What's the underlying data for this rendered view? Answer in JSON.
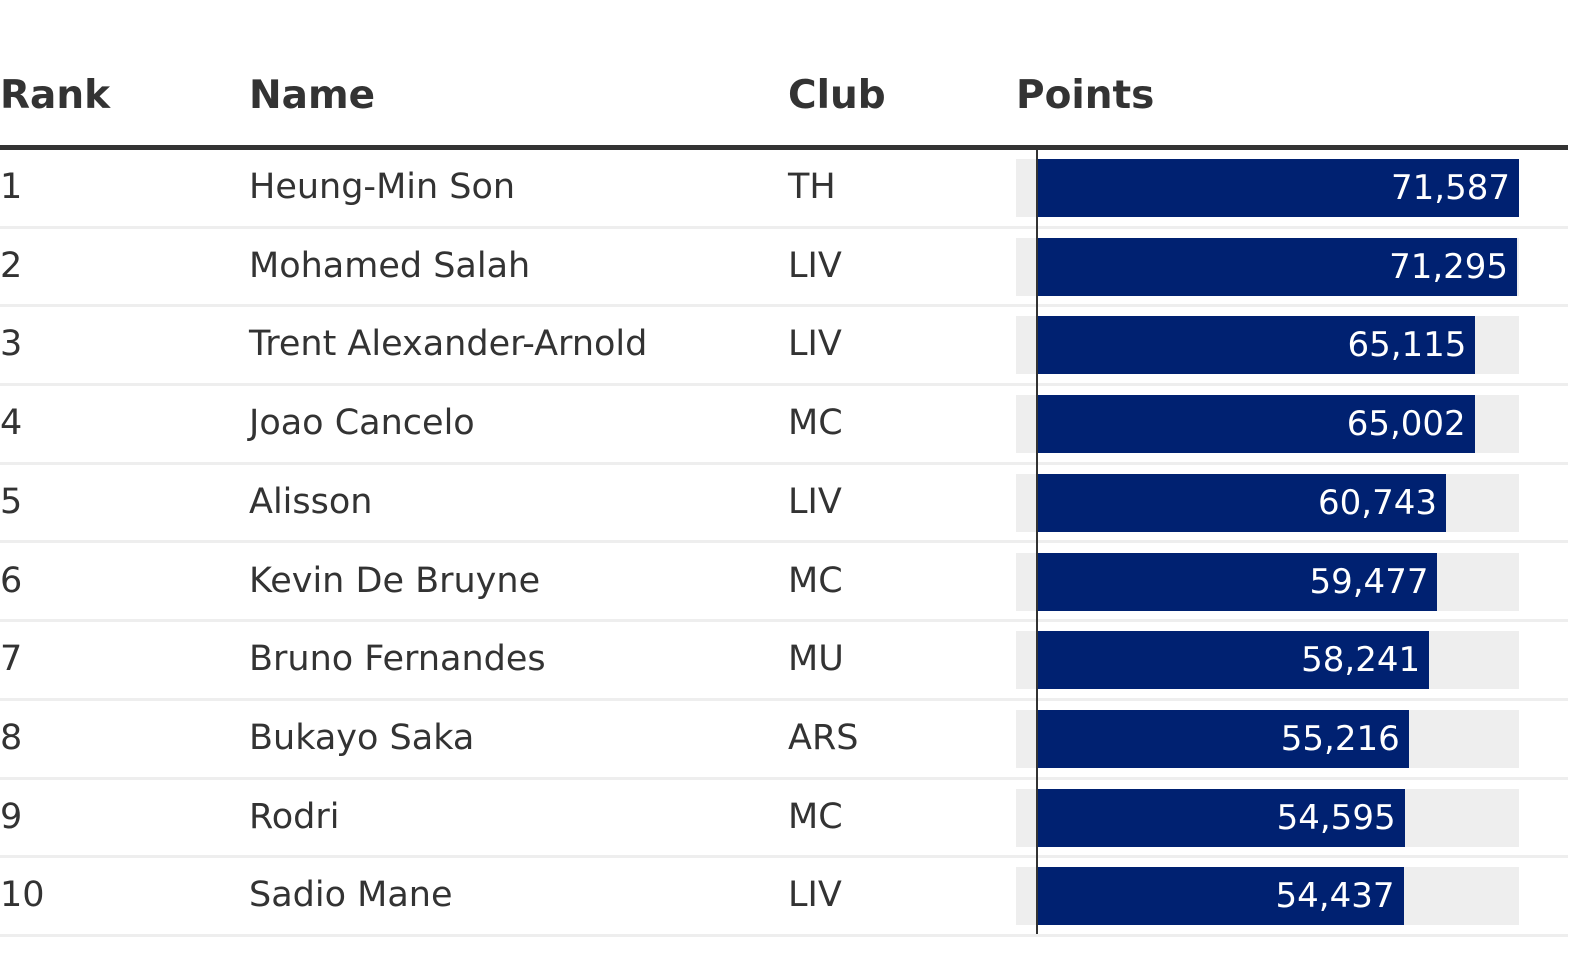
{
  "columns": {
    "rank": "Rank",
    "name": "Name",
    "club": "Club",
    "points": "Points"
  },
  "colors": {
    "bar": "#002171",
    "track": "#eeeeee",
    "text": "#333333",
    "bar_label": "#ffffff"
  },
  "chart_data": {
    "type": "bar",
    "orientation": "horizontal",
    "categories": [
      "Heung-Min Son",
      "Mohamed Salah",
      "Trent Alexander-Arnold",
      "Joao Cancelo",
      "Alisson",
      "Kevin De Bruyne",
      "Bruno Fernandes",
      "Bukayo Saka",
      "Rodri",
      "Sadio Mane"
    ],
    "values": [
      71587,
      71295,
      65115,
      65002,
      60743,
      59477,
      58241,
      55216,
      54595,
      54437
    ],
    "xlim": [
      0,
      71587
    ],
    "rows": [
      {
        "rank": "1",
        "name": "Heung-Min Son",
        "club": "TH",
        "points": 71587,
        "points_label": "71,587"
      },
      {
        "rank": "2",
        "name": "Mohamed Salah",
        "club": "LIV",
        "points": 71295,
        "points_label": "71,295"
      },
      {
        "rank": "3",
        "name": "Trent Alexander-Arnold",
        "club": "LIV",
        "points": 65115,
        "points_label": "65,115"
      },
      {
        "rank": "4",
        "name": "Joao Cancelo",
        "club": "MC",
        "points": 65002,
        "points_label": "65,002"
      },
      {
        "rank": "5",
        "name": "Alisson",
        "club": "LIV",
        "points": 60743,
        "points_label": "60,743"
      },
      {
        "rank": "6",
        "name": "Kevin De Bruyne",
        "club": "MC",
        "points": 59477,
        "points_label": "59,477"
      },
      {
        "rank": "7",
        "name": "Bruno Fernandes",
        "club": "MU",
        "points": 58241,
        "points_label": "58,241"
      },
      {
        "rank": "8",
        "name": "Bukayo Saka",
        "club": "ARS",
        "points": 55216,
        "points_label": "55,216"
      },
      {
        "rank": "9",
        "name": "Rodri",
        "club": "MC",
        "points": 54595,
        "points_label": "54,595"
      },
      {
        "rank": "10",
        "name": "Sadio Mane",
        "club": "LIV",
        "points": 54437,
        "points_label": "54,437"
      }
    ]
  }
}
